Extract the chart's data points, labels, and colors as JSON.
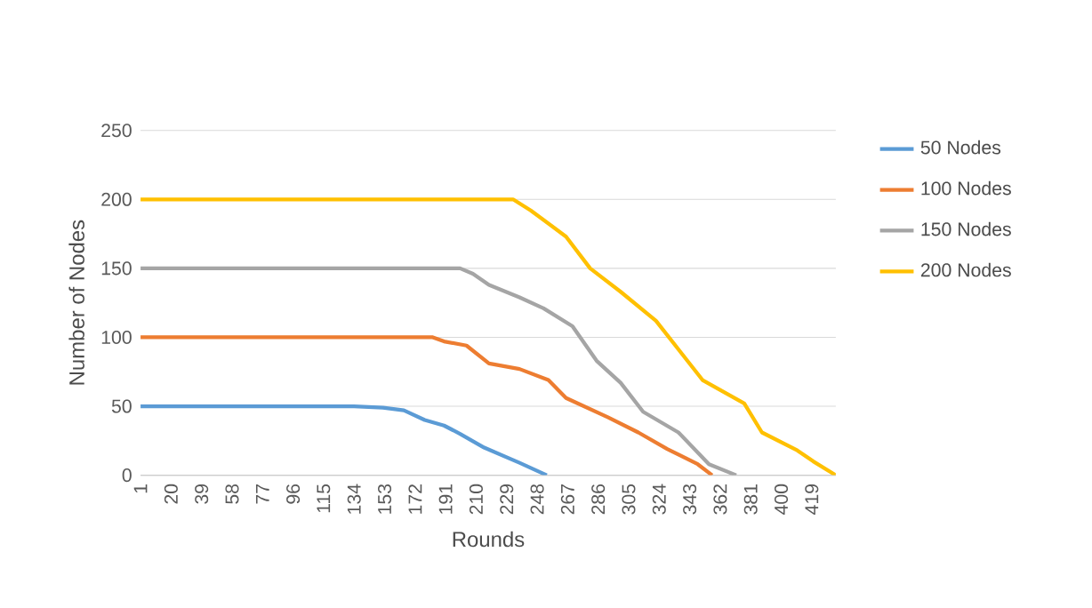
{
  "chart_data": {
    "type": "line",
    "xlabel": "Rounds",
    "ylabel": "Number of Nodes",
    "xlim": [
      1,
      434
    ],
    "ylim": [
      0,
      250
    ],
    "xticks": [
      1,
      20,
      39,
      58,
      77,
      96,
      115,
      134,
      153,
      172,
      191,
      210,
      229,
      248,
      267,
      286,
      305,
      324,
      343,
      362,
      381,
      400,
      419
    ],
    "yticks": [
      0,
      50,
      100,
      150,
      200,
      250
    ],
    "grid": "y",
    "legend": "right",
    "marker": "none",
    "line_style": "solid",
    "series": [
      {
        "name": "50 Nodes",
        "color": "#5b9bd5",
        "x": [
          1,
          134,
          152,
          165,
          178,
          190,
          200,
          215,
          237,
          254
        ],
        "values": [
          50,
          50,
          49,
          47,
          40,
          36,
          30,
          20,
          9,
          0
        ]
      },
      {
        "name": "100 Nodes",
        "color": "#ed7d31",
        "x": [
          1,
          183,
          190,
          204,
          218,
          237,
          255,
          266,
          292,
          311,
          329,
          348,
          357
        ],
        "values": [
          100,
          100,
          97,
          94,
          81,
          77,
          69,
          56,
          42,
          31,
          19,
          8,
          0
        ]
      },
      {
        "name": "150 Nodes",
        "color": "#a5a5a5",
        "x": [
          1,
          200,
          208,
          218,
          237,
          252,
          270,
          285,
          300,
          314,
          336,
          355,
          372
        ],
        "values": [
          150,
          150,
          146,
          138,
          129,
          121,
          108,
          83,
          67,
          46,
          31,
          8,
          0
        ]
      },
      {
        "name": "200 Nodes",
        "color": "#ffc000",
        "x": [
          1,
          233,
          244,
          266,
          281,
          300,
          322,
          351,
          377,
          388,
          410,
          420,
          434
        ],
        "values": [
          200,
          200,
          192,
          173,
          150,
          133,
          112,
          69,
          52,
          31,
          18,
          10,
          0
        ]
      }
    ]
  }
}
